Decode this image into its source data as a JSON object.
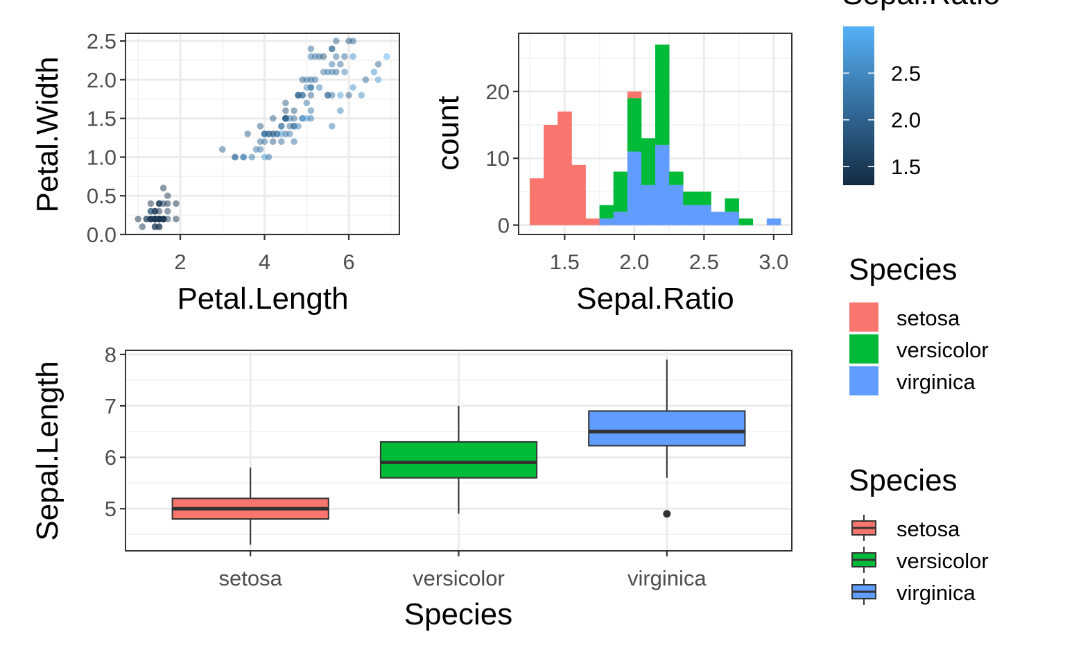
{
  "colors": {
    "setosa": "#F8766D",
    "versicolor": "#00BA38",
    "virginica": "#619CFF",
    "gradient_low": "#132B43",
    "gradient_high": "#56B1F7"
  },
  "legends": {
    "colorbar": {
      "title": "Sepal.Ratio",
      "breaks": [
        "1.5",
        "2.0",
        "2.5"
      ],
      "range": [
        1.3,
        3.0
      ]
    },
    "fill": {
      "title": "Species",
      "entries": [
        "setosa",
        "versicolor",
        "virginica"
      ]
    },
    "box": {
      "title": "Species",
      "entries": [
        "setosa",
        "versicolor",
        "virginica"
      ]
    }
  },
  "chart_data": [
    {
      "id": "scatter",
      "type": "scatter",
      "xlabel": "Petal.Length",
      "ylabel": "Petal.Width",
      "xlim": [
        0.7,
        7.2
      ],
      "ylim": [
        0.0,
        2.6
      ],
      "x_ticks": [
        "2",
        "4",
        "6"
      ],
      "y_ticks": [
        "0.0",
        "0.5",
        "1.0",
        "1.5",
        "2.0",
        "2.5"
      ],
      "color_by": "Sepal.Ratio",
      "points": [
        [
          1.4,
          0.2,
          1.46
        ],
        [
          1.4,
          0.2,
          1.63
        ],
        [
          1.3,
          0.2,
          1.47
        ],
        [
          1.5,
          0.2,
          1.48
        ],
        [
          1.4,
          0.2,
          1.39
        ],
        [
          1.7,
          0.4,
          1.38
        ],
        [
          1.4,
          0.3,
          1.35
        ],
        [
          1.5,
          0.2,
          1.47
        ],
        [
          1.4,
          0.2,
          1.52
        ],
        [
          1.5,
          0.1,
          1.58
        ],
        [
          1.5,
          0.2,
          1.46
        ],
        [
          1.6,
          0.2,
          1.41
        ],
        [
          1.4,
          0.1,
          1.6
        ],
        [
          1.1,
          0.1,
          1.43
        ],
        [
          1.2,
          0.2,
          1.45
        ],
        [
          1.5,
          0.4,
          1.3
        ],
        [
          1.3,
          0.4,
          1.38
        ],
        [
          1.4,
          0.3,
          1.46
        ],
        [
          1.7,
          0.3,
          1.5
        ],
        [
          1.5,
          0.3,
          1.34
        ],
        [
          1.7,
          0.2,
          1.59
        ],
        [
          1.5,
          0.4,
          1.38
        ],
        [
          1.0,
          0.2,
          1.28
        ],
        [
          1.7,
          0.5,
          1.55
        ],
        [
          1.9,
          0.2,
          1.41
        ],
        [
          1.6,
          0.2,
          1.67
        ],
        [
          1.6,
          0.4,
          1.47
        ],
        [
          1.5,
          0.2,
          1.49
        ],
        [
          1.4,
          0.2,
          1.53
        ],
        [
          1.6,
          0.2,
          1.47
        ],
        [
          1.6,
          0.2,
          1.55
        ],
        [
          1.5,
          0.4,
          1.59
        ],
        [
          1.5,
          0.1,
          1.27
        ],
        [
          1.4,
          0.2,
          1.31
        ],
        [
          1.5,
          0.2,
          1.58
        ],
        [
          1.2,
          0.2,
          1.56
        ],
        [
          1.3,
          0.2,
          1.57
        ],
        [
          1.4,
          0.1,
          1.36
        ],
        [
          1.3,
          0.2,
          1.47
        ],
        [
          1.5,
          0.2,
          1.5
        ],
        [
          1.3,
          0.3,
          1.4
        ],
        [
          1.3,
          0.3,
          1.96
        ],
        [
          1.3,
          0.2,
          1.38
        ],
        [
          1.6,
          0.6,
          1.43
        ],
        [
          1.9,
          0.4,
          1.34
        ],
        [
          1.4,
          0.3,
          1.6
        ],
        [
          1.6,
          0.2,
          1.34
        ],
        [
          1.4,
          0.2,
          1.44
        ],
        [
          1.5,
          0.2,
          1.4
        ],
        [
          1.4,
          0.2,
          1.52
        ],
        [
          4.7,
          1.4,
          2.19
        ],
        [
          4.5,
          1.5,
          1.97
        ],
        [
          4.9,
          1.5,
          2.23
        ],
        [
          4.0,
          1.3,
          2.39
        ],
        [
          4.6,
          1.5,
          2.32
        ],
        [
          4.5,
          1.3,
          2.04
        ],
        [
          4.7,
          1.6,
          1.91
        ],
        [
          3.3,
          1.0,
          2.04
        ],
        [
          4.6,
          1.3,
          2.28
        ],
        [
          3.9,
          1.4,
          1.93
        ],
        [
          3.5,
          1.0,
          2.5
        ],
        [
          4.2,
          1.5,
          1.97
        ],
        [
          4.0,
          1.0,
          2.73
        ],
        [
          4.7,
          1.4,
          2.1
        ],
        [
          3.6,
          1.3,
          1.93
        ],
        [
          4.4,
          1.4,
          2.16
        ],
        [
          4.5,
          1.5,
          1.87
        ],
        [
          4.1,
          1.0,
          2.15
        ],
        [
          4.5,
          1.5,
          2.82
        ],
        [
          3.9,
          1.1,
          2.24
        ],
        [
          4.8,
          1.8,
          1.84
        ],
        [
          4.0,
          1.3,
          2.18
        ],
        [
          4.9,
          1.5,
          2.52
        ],
        [
          4.7,
          1.2,
          2.18
        ],
        [
          4.3,
          1.3,
          2.21
        ],
        [
          4.4,
          1.4,
          2.2
        ],
        [
          4.8,
          1.4,
          2.43
        ],
        [
          5.0,
          1.7,
          2.23
        ],
        [
          4.5,
          1.5,
          2.07
        ],
        [
          3.5,
          1.0,
          2.19
        ],
        [
          3.8,
          1.1,
          2.29
        ],
        [
          3.7,
          1.0,
          2.29
        ],
        [
          3.9,
          1.2,
          2.15
        ],
        [
          5.1,
          1.6,
          2.22
        ],
        [
          4.5,
          1.5,
          1.8
        ],
        [
          4.5,
          1.6,
          1.76
        ],
        [
          4.7,
          1.5,
          2.16
        ],
        [
          4.4,
          1.3,
          2.74
        ],
        [
          4.1,
          1.3,
          1.87
        ],
        [
          4.0,
          1.3,
          2.2
        ],
        [
          4.4,
          1.2,
          2.12
        ],
        [
          4.6,
          1.4,
          2.03
        ],
        [
          4.0,
          1.2,
          2.23
        ],
        [
          3.3,
          1.0,
          2.17
        ],
        [
          4.2,
          1.3,
          2.07
        ],
        [
          4.2,
          1.2,
          1.9
        ],
        [
          4.2,
          1.3,
          1.97
        ],
        [
          4.3,
          1.3,
          2.14
        ],
        [
          3.0,
          1.1,
          2.04
        ],
        [
          4.1,
          1.3,
          2.04
        ],
        [
          6.0,
          2.5,
          1.91
        ],
        [
          5.1,
          1.9,
          2.15
        ],
        [
          5.9,
          2.1,
          2.37
        ],
        [
          5.6,
          1.8,
          2.17
        ],
        [
          5.8,
          2.2,
          2.17
        ],
        [
          6.6,
          2.1,
          2.53
        ],
        [
          4.5,
          1.7,
          1.96
        ],
        [
          6.3,
          1.8,
          2.52
        ],
        [
          5.8,
          1.8,
          2.68
        ],
        [
          6.1,
          2.5,
          1.99
        ],
        [
          5.1,
          2.0,
          2.0
        ],
        [
          5.3,
          1.9,
          2.37
        ],
        [
          5.5,
          2.1,
          2.27
        ],
        [
          5.0,
          2.0,
          2.28
        ],
        [
          5.1,
          2.4,
          2.07
        ],
        [
          5.3,
          2.3,
          2.0
        ],
        [
          5.5,
          1.8,
          2.17
        ],
        [
          6.7,
          2.2,
          2.03
        ],
        [
          6.9,
          2.3,
          2.96
        ],
        [
          5.0,
          1.5,
          2.73
        ],
        [
          5.7,
          2.3,
          2.16
        ],
        [
          4.9,
          2.0,
          2.0
        ],
        [
          6.7,
          2.0,
          2.75
        ],
        [
          4.9,
          1.8,
          2.33
        ],
        [
          5.7,
          2.1,
          2.03
        ],
        [
          6.0,
          1.8,
          2.0
        ],
        [
          4.8,
          1.8,
          2.21
        ],
        [
          4.9,
          1.8,
          2.03
        ],
        [
          5.6,
          2.1,
          2.29
        ],
        [
          5.8,
          1.6,
          2.4
        ],
        [
          6.1,
          1.9,
          2.64
        ],
        [
          6.4,
          2.0,
          2.08
        ],
        [
          5.6,
          2.2,
          2.29
        ],
        [
          5.1,
          1.5,
          2.25
        ],
        [
          5.6,
          1.4,
          2.35
        ],
        [
          6.1,
          2.3,
          2.57
        ],
        [
          5.6,
          2.4,
          1.85
        ],
        [
          5.5,
          1.8,
          2.06
        ],
        [
          4.8,
          1.8,
          2.0
        ],
        [
          5.4,
          2.1,
          2.23
        ],
        [
          5.6,
          2.4,
          2.16
        ],
        [
          5.1,
          2.3,
          2.23
        ],
        [
          5.1,
          1.9,
          2.15
        ],
        [
          5.9,
          2.3,
          2.13
        ],
        [
          5.7,
          2.5,
          2.03
        ],
        [
          5.2,
          2.3,
          2.23
        ],
        [
          5.0,
          1.9,
          2.52
        ],
        [
          5.2,
          2.0,
          2.17
        ],
        [
          5.4,
          2.3,
          1.82
        ],
        [
          5.1,
          1.8,
          1.97
        ]
      ]
    },
    {
      "id": "histogram",
      "type": "bar",
      "stacked": true,
      "xlabel": "Sepal.Ratio",
      "ylabel": "count",
      "xlim": [
        1.17,
        3.13
      ],
      "ylim": [
        -1.4,
        28.7
      ],
      "x_ticks": [
        "1.5",
        "2.0",
        "2.5",
        "3.0"
      ],
      "y_ticks": [
        "0",
        "10",
        "20"
      ],
      "bin_edges": [
        1.25,
        1.35,
        1.45,
        1.55,
        1.65,
        1.75,
        1.85,
        1.95,
        2.05,
        2.15,
        2.25,
        2.35,
        2.45,
        2.55,
        2.65,
        2.75,
        2.85,
        2.95,
        3.05
      ],
      "series": [
        {
          "name": "virginica",
          "values": [
            0,
            0,
            0,
            0,
            0,
            1,
            2,
            11,
            6,
            12,
            6,
            3,
            3,
            2,
            2,
            0,
            0,
            1
          ]
        },
        {
          "name": "versicolor",
          "values": [
            0,
            0,
            0,
            0,
            0,
            2,
            6,
            8,
            7,
            15,
            2,
            2,
            2,
            0,
            2,
            1,
            0,
            0
          ]
        },
        {
          "name": "setosa",
          "values": [
            7,
            15,
            17,
            9,
            1,
            0,
            0,
            1,
            0,
            0,
            0,
            0,
            0,
            0,
            0,
            0,
            0,
            0
          ]
        }
      ]
    },
    {
      "id": "boxplot",
      "type": "box",
      "xlabel": "Species",
      "ylabel": "Sepal.Length",
      "ylim": [
        4.18,
        8.08
      ],
      "categories": [
        "setosa",
        "versicolor",
        "virginica"
      ],
      "y_ticks": [
        "5",
        "6",
        "7",
        "8"
      ],
      "boxes": [
        {
          "name": "setosa",
          "lower": 4.3,
          "q1": 4.8,
          "median": 5.0,
          "q3": 5.2,
          "upper": 5.8,
          "outliers": []
        },
        {
          "name": "versicolor",
          "lower": 4.9,
          "q1": 5.6,
          "median": 5.9,
          "q3": 6.3,
          "upper": 7.0,
          "outliers": []
        },
        {
          "name": "virginica",
          "lower": 5.6,
          "q1": 6.225,
          "median": 6.5,
          "q3": 6.9,
          "upper": 7.9,
          "outliers": [
            4.9
          ]
        }
      ]
    }
  ]
}
